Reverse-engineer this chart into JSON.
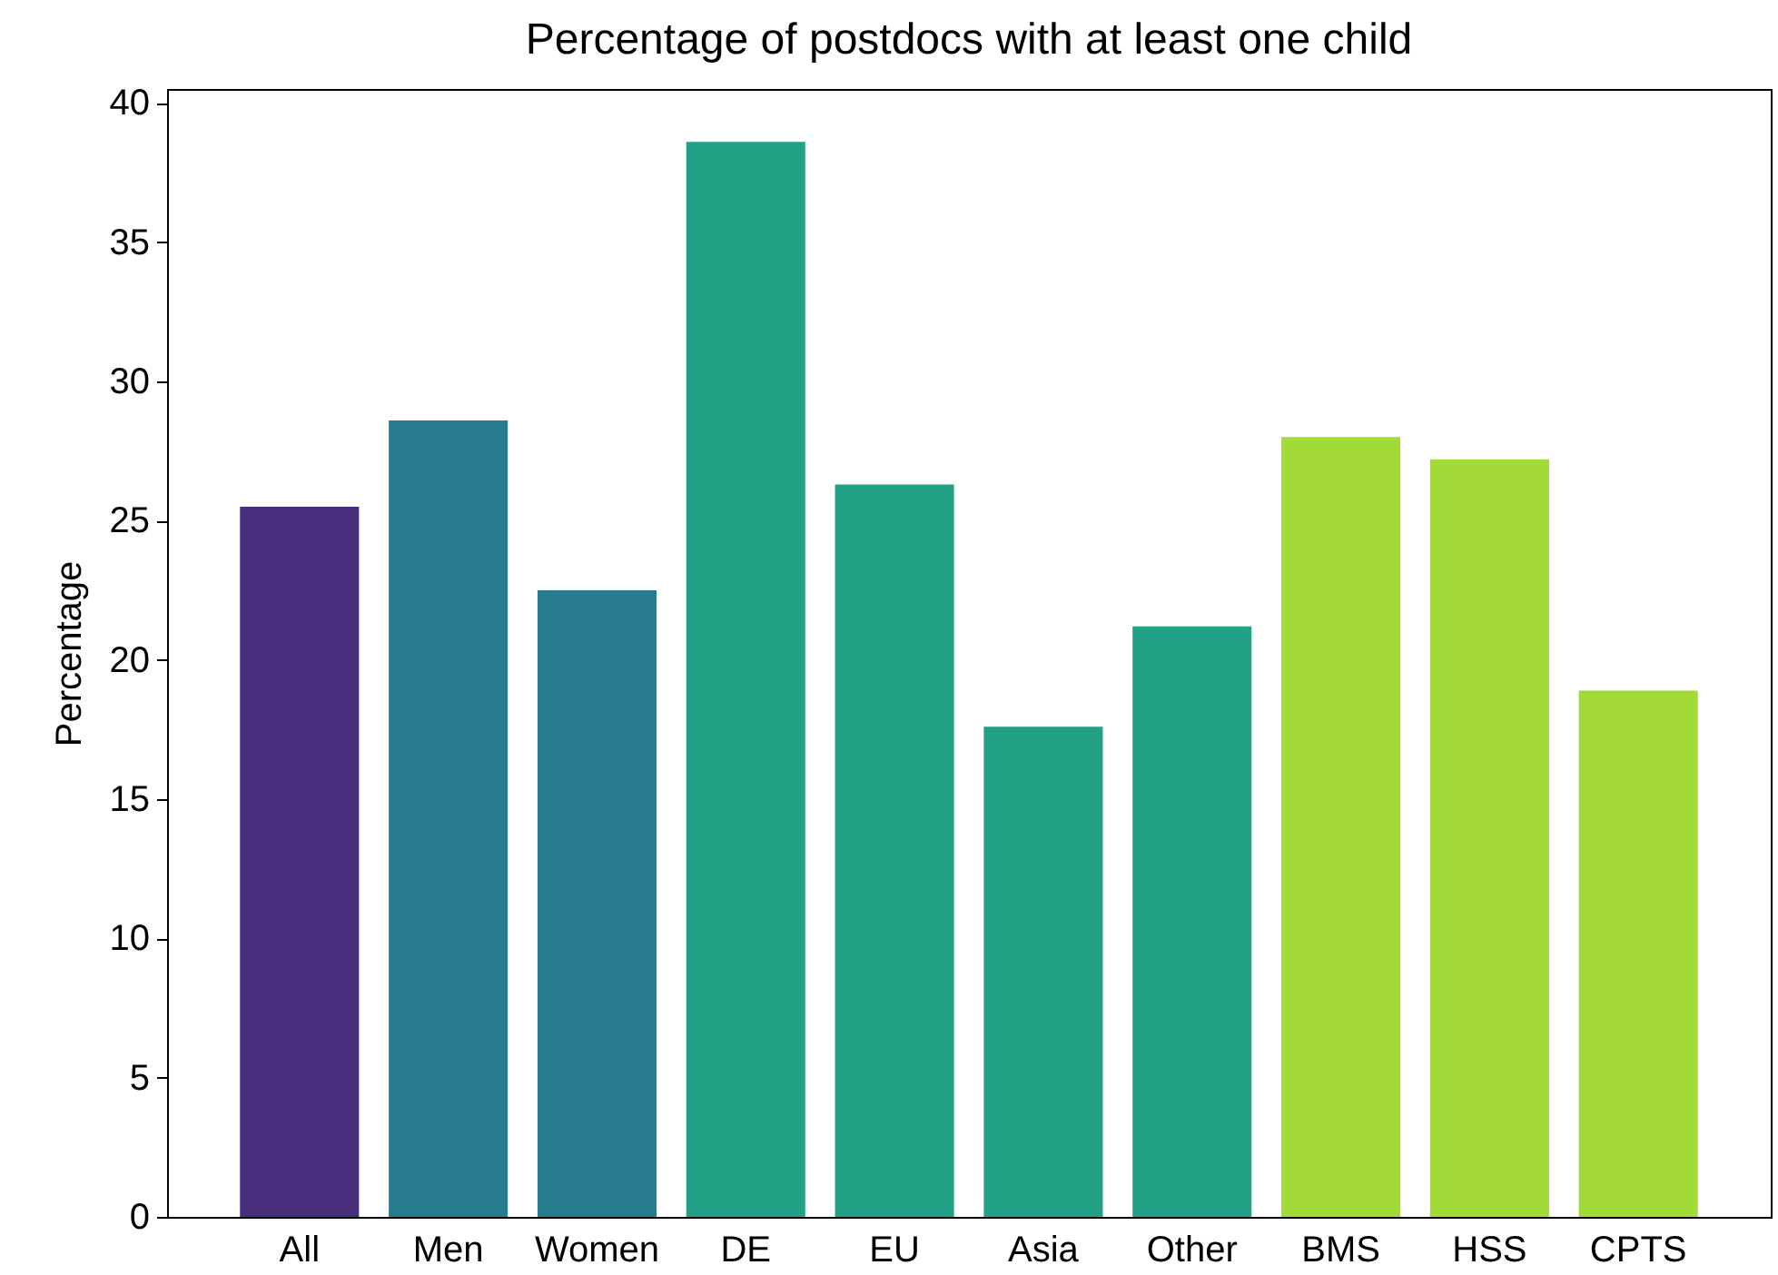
{
  "chart_data": {
    "type": "bar",
    "title": "Percentage of postdocs with at least one child",
    "ylabel": "Percentage",
    "categories": [
      "All",
      "Men",
      "Women",
      "DE",
      "EU",
      "Asia",
      "Other",
      "BMS",
      "HSS",
      "CPTS"
    ],
    "values": [
      25.5,
      28.6,
      22.5,
      38.6,
      26.3,
      17.6,
      21.2,
      28.0,
      27.2,
      18.9
    ],
    "colors": [
      "#472f7d",
      "#297b8e",
      "#297b8e",
      "#22a187",
      "#22a187",
      "#22a187",
      "#22a187",
      "#a2da37",
      "#a2da37",
      "#a2da37"
    ],
    "ylim": [
      0,
      40.5
    ],
    "yticks": [
      0,
      5,
      10,
      15,
      20,
      25,
      30,
      35,
      40
    ],
    "grid": false
  }
}
